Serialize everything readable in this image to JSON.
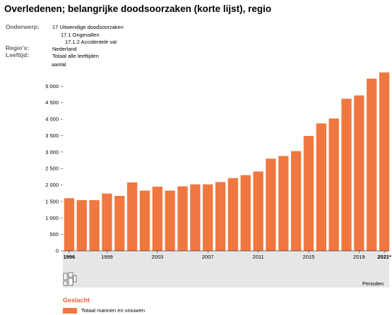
{
  "title": "Overledenen; belangrijke doodsoorzaken (korte lijst), regio",
  "meta": [
    {
      "key": "Onderwerp:",
      "values": [
        "17 Uitwendige doodsoorzaken",
        "17.1 Ongevallen",
        "17.1.2 Accidentele val"
      ]
    },
    {
      "key": "Regio's:",
      "values": [
        "Nederland"
      ]
    },
    {
      "key": "Leeftijd:",
      "values": [
        "Totaal alle leeftijden"
      ]
    }
  ],
  "colors": {
    "bar": "#f07740",
    "axis_band": "#e6e6e6",
    "legend_title": "#e8603a"
  },
  "logo_icon": "cbs-logo-icon",
  "chart_data": {
    "type": "bar",
    "ylabel": "aantal",
    "xlabel": "Perioden",
    "ylim": [
      0,
      5500
    ],
    "yticks": [
      0,
      500,
      1000,
      1500,
      2000,
      2500,
      3000,
      3500,
      4000,
      4500,
      5000
    ],
    "ytick_labels": [
      "0",
      "500",
      "1 000",
      "1 500",
      "2 000",
      "2 500",
      "3 000",
      "3 500",
      "4 000",
      "4 500",
      "5 000"
    ],
    "grid": false,
    "categories": [
      "1996",
      "1997",
      "1998",
      "1999",
      "2000",
      "2001",
      "2002",
      "2003",
      "2004",
      "2005",
      "2006",
      "2007",
      "2008",
      "2009",
      "2010",
      "2011",
      "2012",
      "2013",
      "2014",
      "2015",
      "2016",
      "2017",
      "2018",
      "2019",
      "2020",
      "2021*"
    ],
    "xtick_labels": [
      {
        "label": "1996",
        "bold": true
      },
      {
        "label": "1999",
        "bold": false
      },
      {
        "label": "2003",
        "bold": false
      },
      {
        "label": "2007",
        "bold": false
      },
      {
        "label": "2011",
        "bold": false
      },
      {
        "label": "2015",
        "bold": false
      },
      {
        "label": "2019",
        "bold": false
      },
      {
        "label": "2021*",
        "bold": true
      }
    ],
    "series": [
      {
        "name": "Totaal mannen en vrouwen",
        "values": [
          1600,
          1540,
          1540,
          1740,
          1670,
          2080,
          1830,
          1950,
          1830,
          1960,
          2020,
          2020,
          2090,
          2210,
          2300,
          2410,
          2800,
          2880,
          3030,
          3490,
          3870,
          4020,
          4620,
          4720,
          5230,
          5420
        ]
      }
    ],
    "legend_title": "Geslacht",
    "legend_placement": "bottom-left"
  }
}
